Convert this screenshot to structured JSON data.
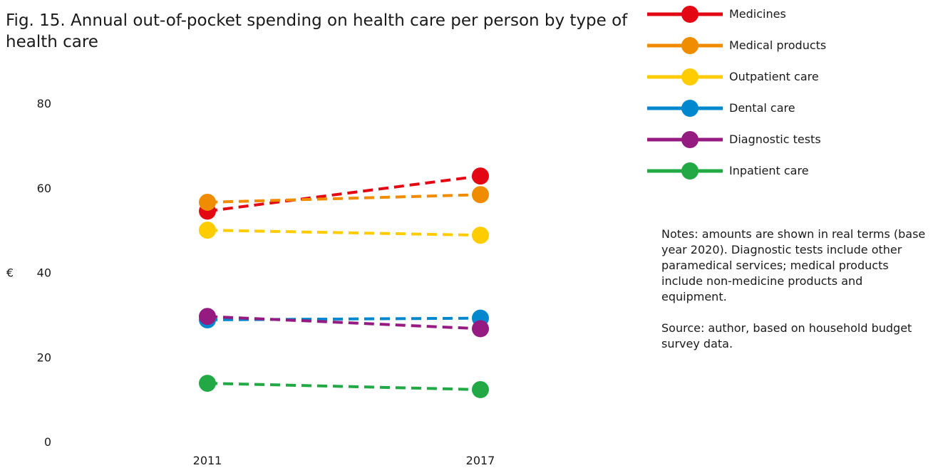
{
  "title": "Fig. 15. Annual out-of-pocket spending on health care per person by type of health care",
  "notes": "Notes: amounts are shown in real terms (base year 2020). Diagnostic tests include other paramedical services; medical products include non-medicine products and equipment.",
  "source": "Source: author, based on household budget survey data.",
  "chart_data": {
    "type": "line",
    "line_style": "dashed",
    "x": [
      "2011",
      "2017"
    ],
    "ylabel": "€",
    "ylim": [
      0,
      80
    ],
    "yticks": [
      "0",
      "20",
      "40",
      "60",
      "80"
    ],
    "grid": false,
    "legend_position": "top-right",
    "series": [
      {
        "name": "Medicines",
        "color": "#e30613",
        "values": [
          54.5,
          62.8
        ]
      },
      {
        "name": "Medical products",
        "color": "#f08c00",
        "values": [
          56.6,
          58.4
        ]
      },
      {
        "name": "Outpatient care",
        "color": "#ffcc00",
        "values": [
          50.0,
          48.8
        ]
      },
      {
        "name": "Dental care",
        "color": "#0087cd",
        "values": [
          28.8,
          29.2
        ]
      },
      {
        "name": "Diagnostic tests",
        "color": "#951b81",
        "values": [
          29.6,
          26.7
        ]
      },
      {
        "name": "Inpatient care",
        "color": "#22a845",
        "values": [
          13.8,
          12.3
        ]
      }
    ]
  }
}
